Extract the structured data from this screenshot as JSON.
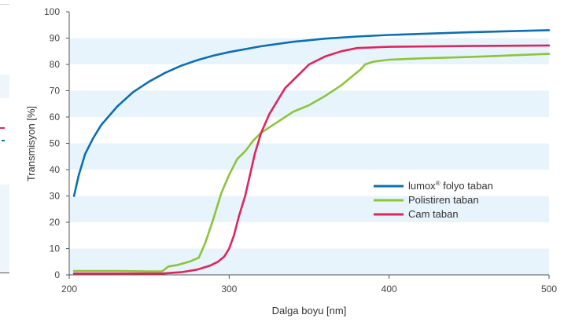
{
  "chart_data": {
    "type": "line",
    "title": "",
    "xlabel": "Dalga boyu [nm]",
    "ylabel": "Transmisyon [%]",
    "xlim": [
      200,
      500
    ],
    "ylim": [
      0,
      100
    ],
    "xticks": [
      200,
      300,
      400,
      500
    ],
    "yticks": [
      0,
      10,
      20,
      30,
      40,
      50,
      60,
      70,
      80,
      90,
      100
    ],
    "grid": "alternating horizontal bands",
    "legend_position": "bottom-right",
    "series": [
      {
        "name_main": "lumox",
        "name_sup": "®",
        "name_rest": " folyo taban",
        "color": "#0a6fb5",
        "x": [
          203,
          206,
          210,
          215,
          220,
          230,
          240,
          250,
          260,
          270,
          280,
          290,
          300,
          320,
          340,
          360,
          380,
          400,
          450,
          500
        ],
        "y": [
          30,
          38,
          46,
          52,
          57,
          64,
          69.5,
          73.5,
          76.8,
          79.5,
          81.6,
          83.3,
          84.7,
          86.9,
          88.6,
          89.8,
          90.6,
          91.2,
          92.2,
          93
        ]
      },
      {
        "name": "Polistiren taban",
        "color": "#8cc43c",
        "x": [
          203,
          230,
          250,
          258,
          262,
          268,
          275,
          281,
          285,
          290,
          295,
          300,
          305,
          310,
          315,
          320,
          330,
          340,
          350,
          360,
          370,
          378,
          382,
          385,
          390,
          400,
          420,
          450,
          500
        ],
        "y": [
          1.5,
          1.5,
          1.3,
          1.3,
          3.2,
          3.8,
          5,
          6.5,
          12,
          21,
          31,
          38,
          44,
          47,
          51,
          54,
          58,
          62,
          64.5,
          68,
          72,
          76,
          78,
          80,
          81,
          81.8,
          82.3,
          82.8,
          84
        ]
      },
      {
        "name": "Cam taban",
        "color": "#e0245e",
        "x": [
          203,
          230,
          258,
          270,
          280,
          288,
          293,
          297,
          300,
          303,
          306,
          310,
          313,
          316,
          320,
          325,
          330,
          335,
          340,
          350,
          360,
          370,
          380,
          400,
          450,
          500
        ],
        "y": [
          0.5,
          0.5,
          0.5,
          1,
          2,
          3.5,
          5,
          7,
          10,
          15,
          22,
          30,
          38,
          46,
          54,
          61,
          66,
          71,
          74,
          80,
          83,
          85,
          86.2,
          86.7,
          87,
          87.2
        ]
      }
    ]
  },
  "colors": {
    "band": "#e8f4fb",
    "axis": "#555555",
    "left_panel_band": "#eef6fb"
  }
}
